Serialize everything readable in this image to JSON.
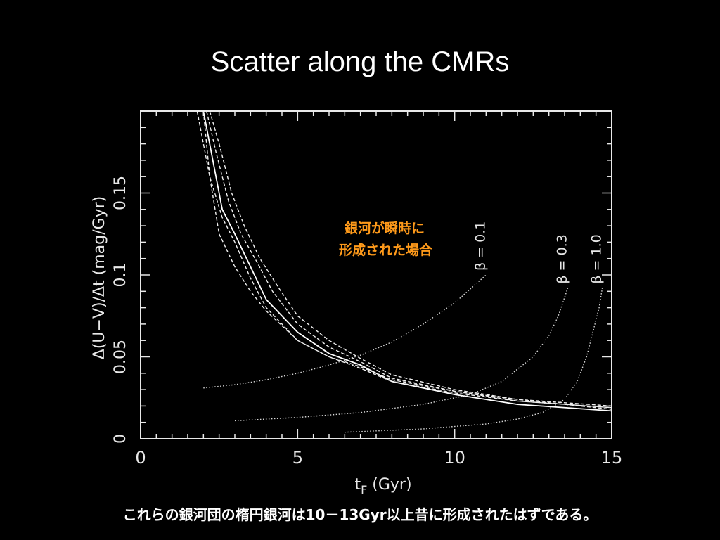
{
  "slide": {
    "title": "Scatter along the CMRs",
    "caption": "これらの銀河団の楕円銀河は10－13Gyr以上昔に形成されたはずである。"
  },
  "colors": {
    "background": "#000000",
    "axis": "#e8e8e8",
    "note": "#ff9a1a"
  },
  "chart_data": {
    "type": "line",
    "xlabel": "t",
    "xlabel_subscript": "F",
    "xlabel_unit": "(Gyr)",
    "ylabel": "Δ(U−V)/Δt  (mag/Gyr)",
    "xlim": [
      0,
      15
    ],
    "ylim": [
      0,
      0.2
    ],
    "xticks": [
      "0",
      "5",
      "10",
      "15"
    ],
    "yticks": [
      "0",
      "0.05",
      "0.1",
      "0.15"
    ],
    "annotation": {
      "lines": [
        "銀河が瞬時に",
        "形成された場合"
      ]
    },
    "series": [
      {
        "name": "",
        "style": "solid",
        "points": [
          [
            2.0,
            0.2
          ],
          [
            2.3,
            0.17
          ],
          [
            2.6,
            0.14
          ],
          [
            3.0,
            0.125
          ],
          [
            3.5,
            0.105
          ],
          [
            4.0,
            0.085
          ],
          [
            5.0,
            0.065
          ],
          [
            6.0,
            0.052
          ],
          [
            7.0,
            0.045
          ],
          [
            8.0,
            0.035
          ],
          [
            10.0,
            0.027
          ],
          [
            12.0,
            0.021
          ],
          [
            15.0,
            0.017
          ]
        ]
      },
      {
        "name": "",
        "style": "dashed",
        "points": [
          [
            1.8,
            0.2
          ],
          [
            2.2,
            0.16
          ],
          [
            2.6,
            0.135
          ],
          [
            3.0,
            0.12
          ],
          [
            3.5,
            0.098
          ],
          [
            4.0,
            0.08
          ],
          [
            5.0,
            0.06
          ],
          [
            6.0,
            0.05
          ],
          [
            7.0,
            0.043
          ],
          [
            8.0,
            0.035
          ],
          [
            10.0,
            0.028
          ],
          [
            12.0,
            0.023
          ],
          [
            15.0,
            0.019
          ]
        ]
      },
      {
        "name": "",
        "style": "dashed",
        "points": [
          [
            2.1,
            0.2
          ],
          [
            2.4,
            0.175
          ],
          [
            2.8,
            0.145
          ],
          [
            3.2,
            0.125
          ],
          [
            3.7,
            0.108
          ],
          [
            4.2,
            0.09
          ],
          [
            5.0,
            0.07
          ],
          [
            6.0,
            0.056
          ],
          [
            7.0,
            0.047
          ],
          [
            8.0,
            0.037
          ],
          [
            10.0,
            0.029
          ],
          [
            12.0,
            0.024
          ],
          [
            15.0,
            0.02
          ]
        ]
      },
      {
        "name": "",
        "style": "dashed",
        "points": [
          [
            2.0,
            0.2
          ],
          [
            2.2,
            0.16
          ],
          [
            2.5,
            0.125
          ],
          [
            3.0,
            0.105
          ],
          [
            3.5,
            0.09
          ],
          [
            4.0,
            0.078
          ],
          [
            5.0,
            0.06
          ],
          [
            6.0,
            0.05
          ],
          [
            7.0,
            0.044
          ],
          [
            8.0,
            0.036
          ],
          [
            10.0,
            0.029
          ],
          [
            12.0,
            0.023
          ],
          [
            15.0,
            0.019
          ]
        ]
      },
      {
        "name": "",
        "style": "dashed",
        "points": [
          [
            2.2,
            0.2
          ],
          [
            2.5,
            0.18
          ],
          [
            2.9,
            0.15
          ],
          [
            3.3,
            0.13
          ],
          [
            3.8,
            0.11
          ],
          [
            4.4,
            0.092
          ],
          [
            5.0,
            0.075
          ],
          [
            6.0,
            0.06
          ],
          [
            7.0,
            0.049
          ],
          [
            8.0,
            0.039
          ],
          [
            10.0,
            0.03
          ],
          [
            12.0,
            0.024
          ],
          [
            15.0,
            0.018
          ]
        ]
      },
      {
        "name": "β = 0.1",
        "style": "dotted",
        "points": [
          [
            2.0,
            0.031
          ],
          [
            3.0,
            0.033
          ],
          [
            4.0,
            0.036
          ],
          [
            5.0,
            0.04
          ],
          [
            6.0,
            0.045
          ],
          [
            7.0,
            0.051
          ],
          [
            8.0,
            0.059
          ],
          [
            9.0,
            0.07
          ],
          [
            10.0,
            0.083
          ],
          [
            11.0,
            0.1
          ]
        ]
      },
      {
        "name": "β = 0.3",
        "style": "dotted",
        "points": [
          [
            3.0,
            0.011
          ],
          [
            5.0,
            0.013
          ],
          [
            7.0,
            0.016
          ],
          [
            9.0,
            0.021
          ],
          [
            10.5,
            0.027
          ],
          [
            11.5,
            0.035
          ],
          [
            12.5,
            0.05
          ],
          [
            13.0,
            0.063
          ],
          [
            13.3,
            0.075
          ],
          [
            13.6,
            0.092
          ]
        ]
      },
      {
        "name": "β = 1.0",
        "style": "dotted",
        "points": [
          [
            6.5,
            0.004
          ],
          [
            9.0,
            0.006
          ],
          [
            11.0,
            0.009
          ],
          [
            12.0,
            0.012
          ],
          [
            12.8,
            0.016
          ],
          [
            13.5,
            0.024
          ],
          [
            13.9,
            0.035
          ],
          [
            14.2,
            0.05
          ],
          [
            14.4,
            0.065
          ],
          [
            14.6,
            0.08
          ],
          [
            14.7,
            0.092
          ]
        ]
      }
    ]
  }
}
